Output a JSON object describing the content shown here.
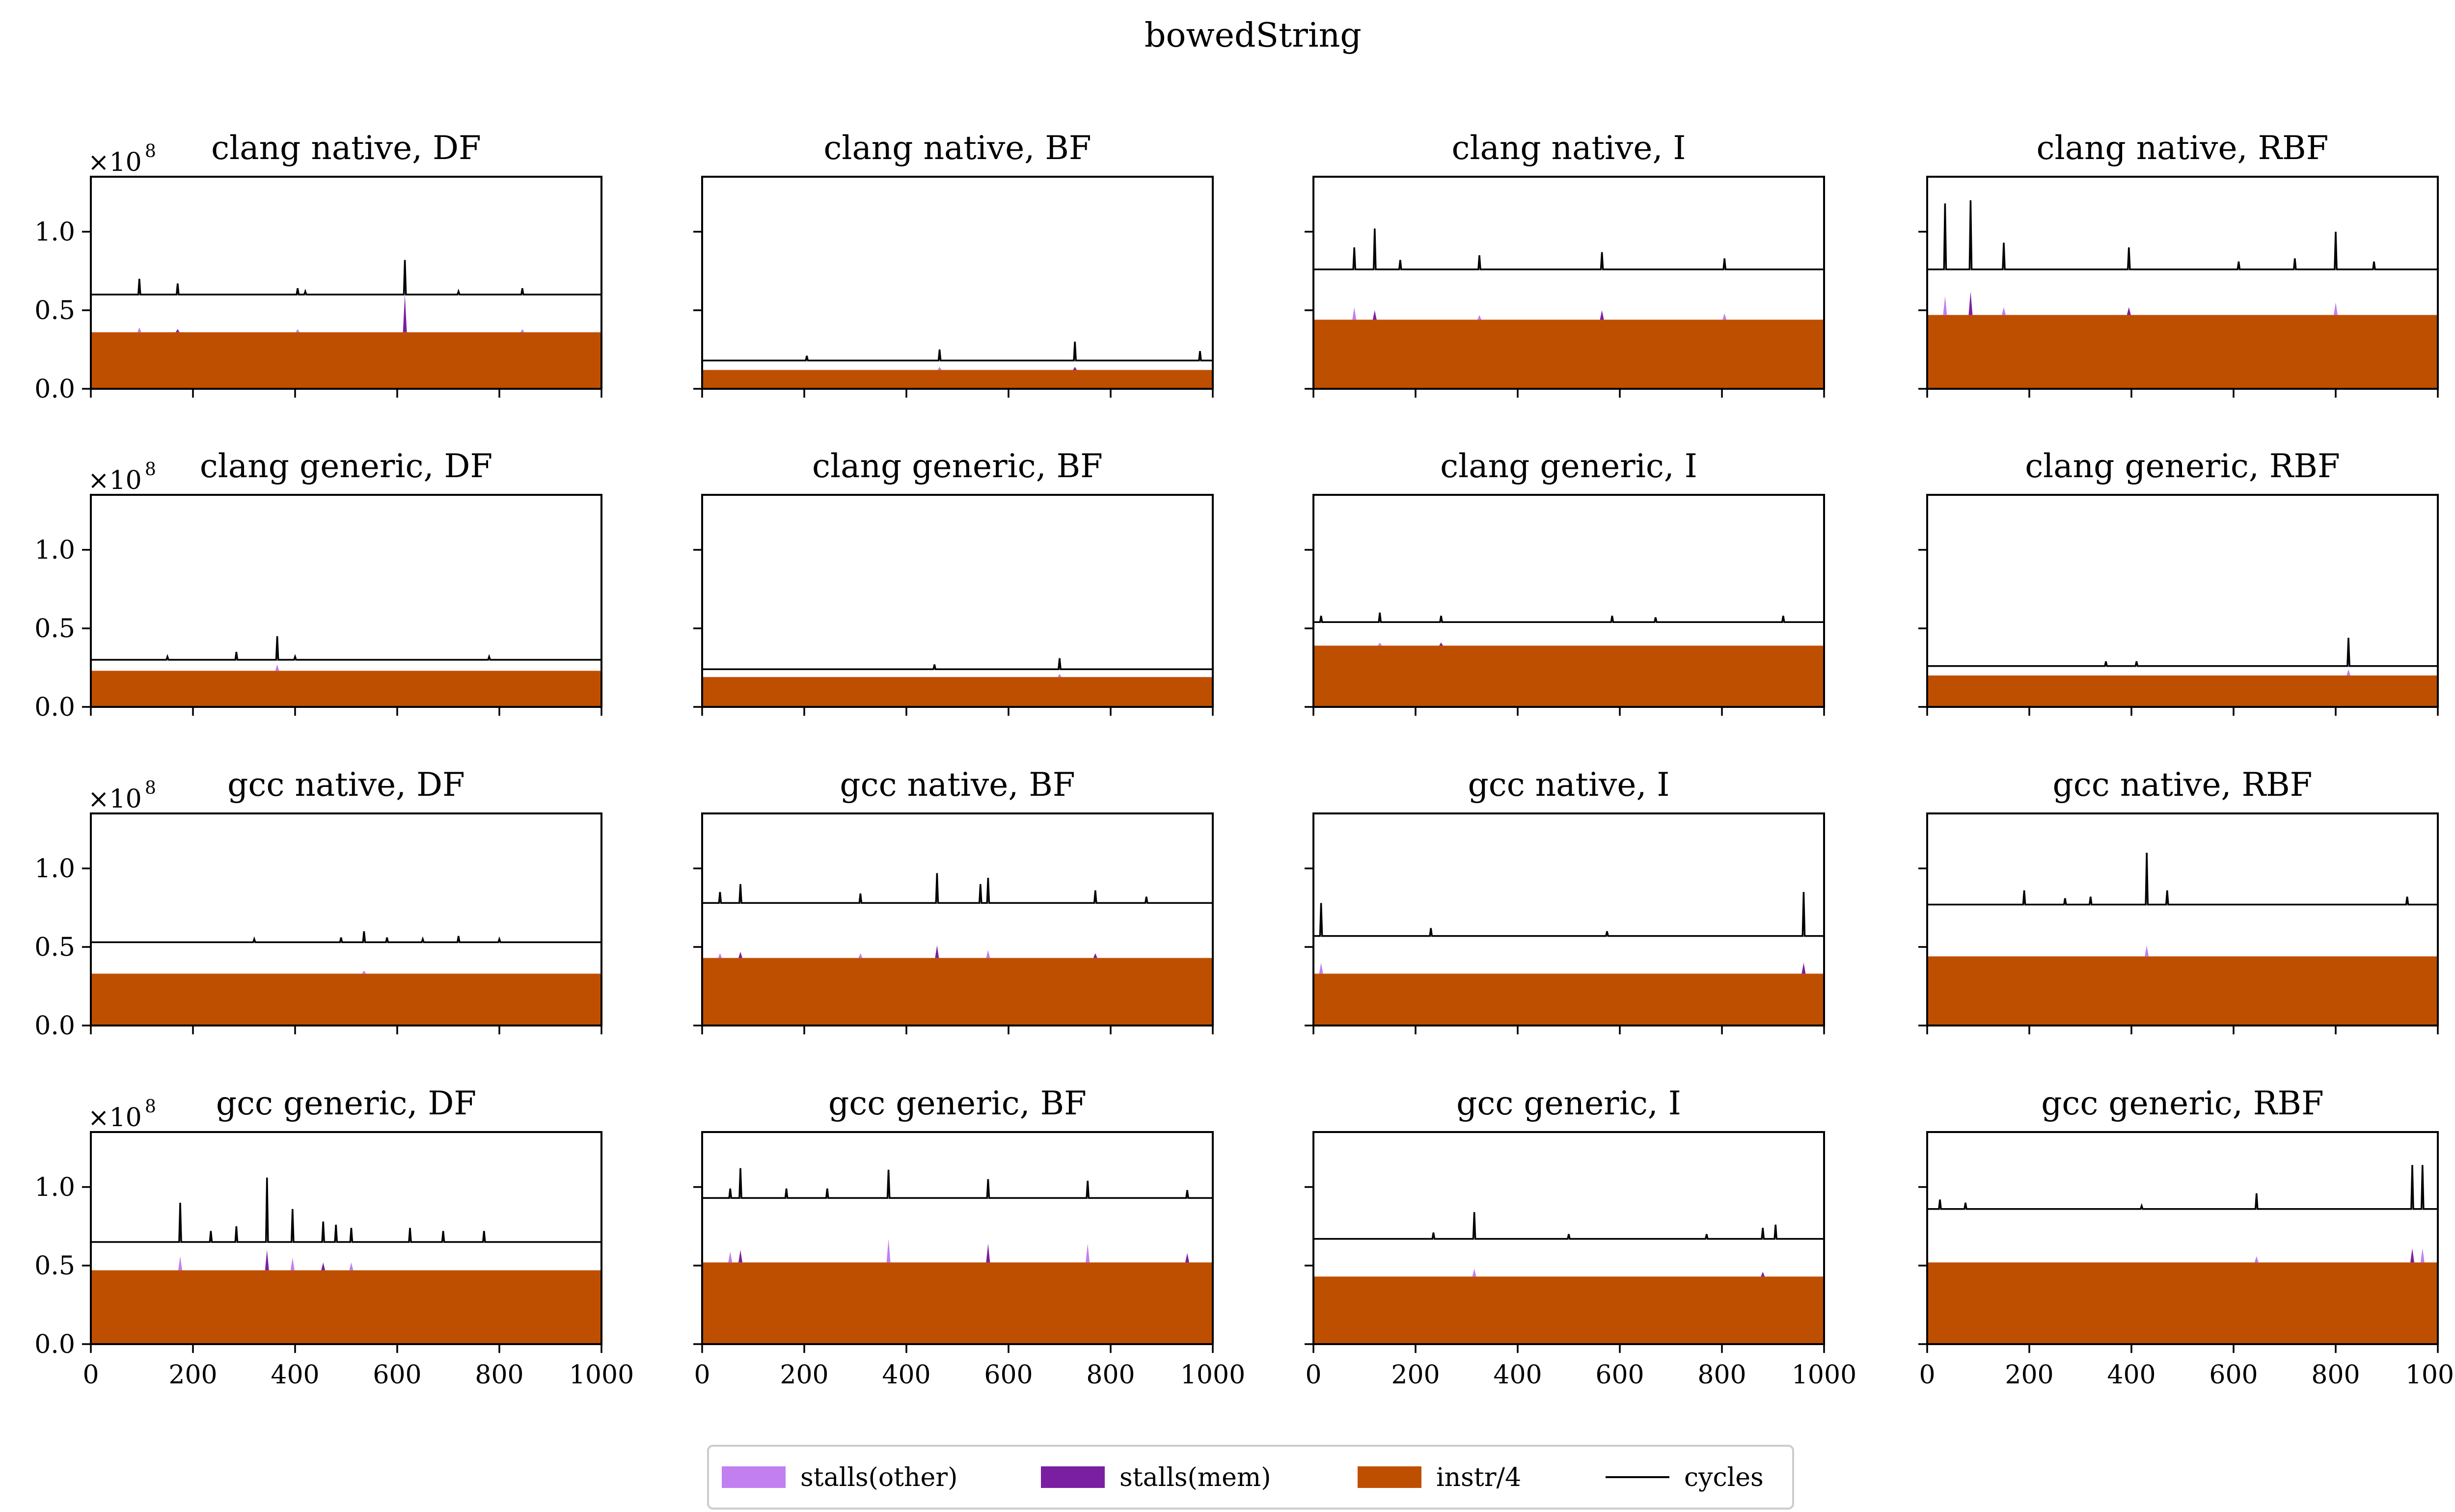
{
  "suptitle": "bowedString",
  "legend": {
    "items": [
      {
        "label": "stalls(other)",
        "kind": "patch",
        "color": "#c17ff0"
      },
      {
        "label": "stalls(mem)",
        "kind": "patch",
        "color": "#7b1fa2"
      },
      {
        "label": "instr/4",
        "kind": "patch",
        "color": "#bf4f00"
      },
      {
        "label": "cycles",
        "kind": "line",
        "color": "#000000"
      }
    ]
  },
  "axes_common": {
    "xlim": [
      0,
      1000
    ],
    "ylim": [
      0,
      1.35
    ],
    "x_ticks": [
      0,
      200,
      400,
      600,
      800,
      1000
    ],
    "x_tick_labels": [
      "0",
      "200",
      "400",
      "600",
      "800",
      "1000"
    ],
    "y_ticks": [
      0.0,
      0.5,
      1.0
    ],
    "y_tick_labels": [
      "0.0",
      "0.5",
      "1.0"
    ],
    "y_scale_label": "×10",
    "y_scale_exponent": "8"
  },
  "chart_data": [
    {
      "type": "area",
      "title": "clang native, DF",
      "xlim": [
        0,
        1000
      ],
      "ylim": [
        0,
        1.35
      ],
      "instr_div4": 0.36,
      "cycles_base": 0.6,
      "cycle_spikes": [
        [
          95,
          0.7
        ],
        [
          170,
          0.67
        ],
        [
          405,
          0.64
        ],
        [
          420,
          0.62
        ],
        [
          615,
          0.82
        ],
        [
          720,
          0.62
        ],
        [
          845,
          0.64
        ]
      ],
      "stall_spikes": [
        [
          95,
          0.39
        ],
        [
          170,
          0.38
        ],
        [
          405,
          0.38
        ],
        [
          615,
          0.6
        ],
        [
          845,
          0.38
        ]
      ]
    },
    {
      "type": "area",
      "title": "clang native, BF",
      "xlim": [
        0,
        1000
      ],
      "ylim": [
        0,
        1.35
      ],
      "instr_div4": 0.12,
      "cycles_base": 0.18,
      "cycle_spikes": [
        [
          205,
          0.21
        ],
        [
          465,
          0.25
        ],
        [
          730,
          0.3
        ],
        [
          975,
          0.24
        ]
      ],
      "stall_spikes": [
        [
          465,
          0.14
        ],
        [
          730,
          0.14
        ]
      ]
    },
    {
      "type": "area",
      "title": "clang native, I",
      "xlim": [
        0,
        1000
      ],
      "ylim": [
        0,
        1.35
      ],
      "instr_div4": 0.44,
      "cycles_base": 0.76,
      "cycle_spikes": [
        [
          80,
          0.9
        ],
        [
          120,
          1.02
        ],
        [
          170,
          0.82
        ],
        [
          325,
          0.85
        ],
        [
          565,
          0.87
        ],
        [
          805,
          0.83
        ]
      ],
      "stall_spikes": [
        [
          80,
          0.52
        ],
        [
          120,
          0.5
        ],
        [
          325,
          0.47
        ],
        [
          565,
          0.5
        ],
        [
          805,
          0.48
        ]
      ]
    },
    {
      "type": "area",
      "title": "clang native, RBF",
      "xlim": [
        0,
        1000
      ],
      "ylim": [
        0,
        1.35
      ],
      "instr_div4": 0.47,
      "cycles_base": 0.76,
      "cycle_spikes": [
        [
          35,
          1.18
        ],
        [
          85,
          1.2
        ],
        [
          150,
          0.93
        ],
        [
          395,
          0.9
        ],
        [
          610,
          0.81
        ],
        [
          720,
          0.83
        ],
        [
          800,
          1.0
        ],
        [
          875,
          0.81
        ]
      ],
      "stall_spikes": [
        [
          35,
          0.59
        ],
        [
          85,
          0.62
        ],
        [
          150,
          0.52
        ],
        [
          395,
          0.52
        ],
        [
          800,
          0.55
        ]
      ]
    },
    {
      "type": "area",
      "title": "clang generic, DF",
      "xlim": [
        0,
        1000
      ],
      "ylim": [
        0,
        1.35
      ],
      "instr_div4": 0.23,
      "cycles_base": 0.3,
      "cycle_spikes": [
        [
          150,
          0.32
        ],
        [
          285,
          0.35
        ],
        [
          365,
          0.45
        ],
        [
          400,
          0.32
        ],
        [
          780,
          0.32
        ]
      ],
      "stall_spikes": [
        [
          365,
          0.27
        ]
      ]
    },
    {
      "type": "area",
      "title": "clang generic, BF",
      "xlim": [
        0,
        1000
      ],
      "ylim": [
        0,
        1.35
      ],
      "instr_div4": 0.19,
      "cycles_base": 0.24,
      "cycle_spikes": [
        [
          455,
          0.27
        ],
        [
          700,
          0.31
        ]
      ],
      "stall_spikes": [
        [
          700,
          0.21
        ]
      ]
    },
    {
      "type": "area",
      "title": "clang generic, I",
      "xlim": [
        0,
        1000
      ],
      "ylim": [
        0,
        1.35
      ],
      "instr_div4": 0.39,
      "cycles_base": 0.54,
      "cycle_spikes": [
        [
          15,
          0.58
        ],
        [
          130,
          0.6
        ],
        [
          250,
          0.58
        ],
        [
          585,
          0.58
        ],
        [
          670,
          0.57
        ],
        [
          920,
          0.58
        ]
      ],
      "stall_spikes": [
        [
          130,
          0.41
        ],
        [
          250,
          0.41
        ]
      ]
    },
    {
      "type": "area",
      "title": "clang generic, RBF",
      "xlim": [
        0,
        1000
      ],
      "ylim": [
        0,
        1.35
      ],
      "instr_div4": 0.2,
      "cycles_base": 0.26,
      "cycle_spikes": [
        [
          350,
          0.29
        ],
        [
          410,
          0.29
        ],
        [
          825,
          0.44
        ]
      ],
      "stall_spikes": [
        [
          825,
          0.24
        ]
      ]
    },
    {
      "type": "area",
      "title": "gcc native, DF",
      "xlim": [
        0,
        1000
      ],
      "ylim": [
        0,
        1.35
      ],
      "instr_div4": 0.33,
      "cycles_base": 0.53,
      "cycle_spikes": [
        [
          320,
          0.55
        ],
        [
          490,
          0.56
        ],
        [
          535,
          0.6
        ],
        [
          580,
          0.56
        ],
        [
          650,
          0.55
        ],
        [
          720,
          0.57
        ],
        [
          800,
          0.55
        ]
      ],
      "stall_spikes": [
        [
          535,
          0.35
        ]
      ]
    },
    {
      "type": "area",
      "title": "gcc native, BF",
      "xlim": [
        0,
        1000
      ],
      "ylim": [
        0,
        1.35
      ],
      "instr_div4": 0.43,
      "cycles_base": 0.78,
      "cycle_spikes": [
        [
          35,
          0.85
        ],
        [
          75,
          0.9
        ],
        [
          310,
          0.84
        ],
        [
          460,
          0.97
        ],
        [
          545,
          0.9
        ],
        [
          560,
          0.94
        ],
        [
          770,
          0.86
        ],
        [
          870,
          0.82
        ]
      ],
      "stall_spikes": [
        [
          35,
          0.46
        ],
        [
          75,
          0.47
        ],
        [
          310,
          0.46
        ],
        [
          460,
          0.51
        ],
        [
          560,
          0.48
        ],
        [
          770,
          0.46
        ]
      ]
    },
    {
      "type": "area",
      "title": "gcc native, I",
      "xlim": [
        0,
        1000
      ],
      "ylim": [
        0,
        1.35
      ],
      "instr_div4": 0.33,
      "cycles_base": 0.57,
      "cycle_spikes": [
        [
          15,
          0.78
        ],
        [
          230,
          0.62
        ],
        [
          575,
          0.6
        ],
        [
          960,
          0.85
        ]
      ],
      "stall_spikes": [
        [
          15,
          0.4
        ],
        [
          960,
          0.4
        ]
      ]
    },
    {
      "type": "area",
      "title": "gcc native, RBF",
      "xlim": [
        0,
        1000
      ],
      "ylim": [
        0,
        1.35
      ],
      "instr_div4": 0.44,
      "cycles_base": 0.77,
      "cycle_spikes": [
        [
          190,
          0.86
        ],
        [
          270,
          0.81
        ],
        [
          320,
          0.82
        ],
        [
          430,
          1.1
        ],
        [
          470,
          0.86
        ],
        [
          940,
          0.82
        ]
      ],
      "stall_spikes": [
        [
          430,
          0.51
        ]
      ]
    },
    {
      "type": "area",
      "title": "gcc generic, DF",
      "xlim": [
        0,
        1000
      ],
      "ylim": [
        0,
        1.35
      ],
      "instr_div4": 0.47,
      "cycles_base": 0.65,
      "cycle_spikes": [
        [
          175,
          0.9
        ],
        [
          235,
          0.72
        ],
        [
          285,
          0.75
        ],
        [
          345,
          1.06
        ],
        [
          395,
          0.86
        ],
        [
          455,
          0.78
        ],
        [
          480,
          0.76
        ],
        [
          510,
          0.74
        ],
        [
          625,
          0.74
        ],
        [
          690,
          0.72
        ],
        [
          770,
          0.72
        ]
      ],
      "stall_spikes": [
        [
          175,
          0.56
        ],
        [
          345,
          0.6
        ],
        [
          395,
          0.55
        ],
        [
          455,
          0.52
        ],
        [
          510,
          0.52
        ]
      ]
    },
    {
      "type": "area",
      "title": "gcc generic, BF",
      "xlim": [
        0,
        1000
      ],
      "ylim": [
        0,
        1.35
      ],
      "instr_div4": 0.52,
      "cycles_base": 0.93,
      "cycle_spikes": [
        [
          55,
          0.99
        ],
        [
          75,
          1.12
        ],
        [
          165,
          0.99
        ],
        [
          245,
          0.99
        ],
        [
          365,
          1.11
        ],
        [
          560,
          1.05
        ],
        [
          755,
          1.04
        ],
        [
          950,
          0.98
        ]
      ],
      "stall_spikes": [
        [
          55,
          0.59
        ],
        [
          75,
          0.6
        ],
        [
          365,
          0.67
        ],
        [
          560,
          0.64
        ],
        [
          755,
          0.64
        ],
        [
          950,
          0.58
        ]
      ]
    },
    {
      "type": "area",
      "title": "gcc generic, I",
      "xlim": [
        0,
        1000
      ],
      "ylim": [
        0,
        1.35
      ],
      "instr_div4": 0.43,
      "cycles_base": 0.67,
      "cycle_spikes": [
        [
          235,
          0.71
        ],
        [
          315,
          0.84
        ],
        [
          500,
          0.7
        ],
        [
          770,
          0.7
        ],
        [
          880,
          0.74
        ],
        [
          905,
          0.76
        ]
      ],
      "stall_spikes": [
        [
          315,
          0.48
        ],
        [
          880,
          0.46
        ]
      ]
    },
    {
      "type": "area",
      "title": "gcc generic, RBF",
      "xlim": [
        0,
        1000
      ],
      "ylim": [
        0,
        1.35
      ],
      "instr_div4": 0.52,
      "cycles_base": 0.86,
      "cycle_spikes": [
        [
          25,
          0.92
        ],
        [
          75,
          0.9
        ],
        [
          420,
          0.88
        ],
        [
          645,
          0.96
        ],
        [
          950,
          1.14
        ],
        [
          970,
          1.14
        ]
      ],
      "stall_spikes": [
        [
          645,
          0.56
        ],
        [
          950,
          0.61
        ],
        [
          970,
          0.61
        ]
      ]
    }
  ]
}
